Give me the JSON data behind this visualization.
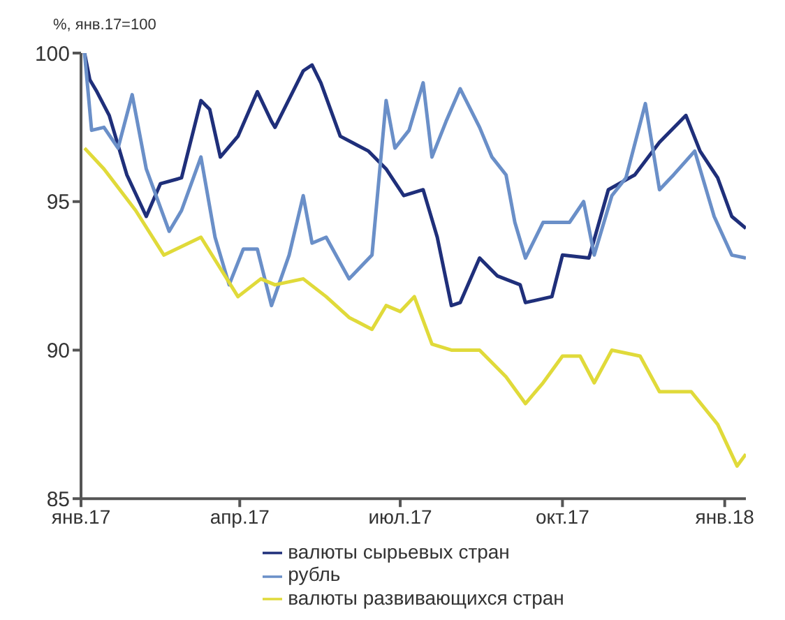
{
  "chart_data": {
    "type": "line",
    "ylabel": "%, янв.17=100",
    "xlim": [
      "2017-01-01",
      "2018-01-13"
    ],
    "xticks": [
      {
        "value": "2017-01-01",
        "label": "янв.17"
      },
      {
        "value": "2017-04-01",
        "label": "апр.17"
      },
      {
        "value": "2017-07-01",
        "label": "июл.17"
      },
      {
        "value": "2017-10-01",
        "label": "окт.17"
      },
      {
        "value": "2018-01-01",
        "label": "янв.18"
      }
    ],
    "ylim": [
      85,
      100
    ],
    "yticks": [
      85,
      90,
      95,
      100
    ],
    "grid": false,
    "legend": "bottom",
    "marker": "none",
    "line_style": "solid",
    "series": [
      {
        "name": "валюты сырьевых стран",
        "color": "#1f2f7a",
        "x": [
          "2017-01-03",
          "2017-01-06",
          "2017-01-10",
          "2017-01-17",
          "2017-01-27",
          "2017-02-07",
          "2017-02-15",
          "2017-02-27",
          "2017-03-10",
          "2017-03-15",
          "2017-03-21",
          "2017-03-31",
          "2017-04-11",
          "2017-04-19",
          "2017-04-21",
          "2017-05-07",
          "2017-05-12",
          "2017-05-17",
          "2017-05-28",
          "2017-06-13",
          "2017-06-23",
          "2017-07-03",
          "2017-07-14",
          "2017-07-22",
          "2017-07-30",
          "2017-08-04",
          "2017-08-15",
          "2017-08-25",
          "2017-09-07",
          "2017-09-10",
          "2017-09-25",
          "2017-10-01",
          "2017-10-16",
          "2017-10-27",
          "2017-11-11",
          "2017-11-25",
          "2017-12-10",
          "2017-12-18",
          "2017-12-28",
          "2018-01-05",
          "2018-01-13"
        ],
        "values": [
          100,
          99.1,
          98.7,
          97.9,
          95.9,
          94.5,
          95.6,
          95.8,
          98.4,
          98.1,
          96.5,
          97.2,
          98.7,
          97.7,
          97.5,
          99.4,
          99.6,
          99.0,
          97.2,
          96.7,
          96.1,
          95.2,
          95.4,
          93.8,
          91.5,
          91.6,
          93.1,
          92.5,
          92.2,
          91.6,
          91.8,
          93.2,
          93.1,
          95.4,
          95.9,
          97.0,
          97.9,
          96.7,
          95.8,
          94.5,
          94.1
        ]
      },
      {
        "name": "рубль",
        "color": "#6a8fc8",
        "x": [
          "2017-01-03",
          "2017-01-07",
          "2017-01-14",
          "2017-01-22",
          "2017-01-30",
          "2017-02-07",
          "2017-02-20",
          "2017-02-27",
          "2017-03-10",
          "2017-03-18",
          "2017-03-26",
          "2017-04-03",
          "2017-04-11",
          "2017-04-19",
          "2017-04-29",
          "2017-05-07",
          "2017-05-12",
          "2017-05-20",
          "2017-06-02",
          "2017-06-15",
          "2017-06-23",
          "2017-06-28",
          "2017-07-06",
          "2017-07-14",
          "2017-07-19",
          "2017-07-27",
          "2017-08-04",
          "2017-08-15",
          "2017-08-22",
          "2017-08-30",
          "2017-09-04",
          "2017-09-10",
          "2017-09-20",
          "2017-10-05",
          "2017-10-13",
          "2017-10-19",
          "2017-10-29",
          "2017-11-06",
          "2017-11-17",
          "2017-11-25",
          "2017-12-03",
          "2017-12-15",
          "2017-12-26",
          "2018-01-05",
          "2018-01-13"
        ],
        "values": [
          100,
          97.4,
          97.5,
          96.8,
          98.6,
          96.1,
          94.0,
          94.7,
          96.5,
          93.8,
          92.2,
          93.4,
          93.4,
          91.5,
          93.2,
          95.2,
          93.6,
          93.8,
          92.4,
          93.2,
          98.4,
          96.8,
          97.4,
          99.0,
          96.5,
          97.7,
          98.8,
          97.5,
          96.5,
          95.9,
          94.3,
          93.1,
          94.3,
          94.3,
          95.0,
          93.2,
          95.2,
          95.8,
          98.3,
          95.4,
          95.9,
          96.7,
          94.5,
          93.2,
          93.1
        ]
      },
      {
        "name": "валюты развивающихся стран",
        "color": "#e0da3a",
        "x": [
          "2017-01-03",
          "2017-01-14",
          "2017-02-01",
          "2017-02-17",
          "2017-03-10",
          "2017-03-31",
          "2017-04-13",
          "2017-04-21",
          "2017-05-07",
          "2017-05-20",
          "2017-06-02",
          "2017-06-15",
          "2017-06-23",
          "2017-07-01",
          "2017-07-09",
          "2017-07-19",
          "2017-07-30",
          "2017-08-15",
          "2017-08-30",
          "2017-09-10",
          "2017-09-20",
          "2017-10-01",
          "2017-10-11",
          "2017-10-19",
          "2017-10-29",
          "2017-11-14",
          "2017-11-25",
          "2017-12-13",
          "2017-12-28",
          "2018-01-08",
          "2018-01-13"
        ],
        "values": [
          96.8,
          96.1,
          94.7,
          93.2,
          93.8,
          91.8,
          92.4,
          92.2,
          92.4,
          91.8,
          91.1,
          90.7,
          91.5,
          91.3,
          91.8,
          90.2,
          90.0,
          90.0,
          89.1,
          88.2,
          88.9,
          89.8,
          89.8,
          88.9,
          90.0,
          89.8,
          88.6,
          88.6,
          87.5,
          86.1,
          86.5
        ]
      }
    ]
  }
}
